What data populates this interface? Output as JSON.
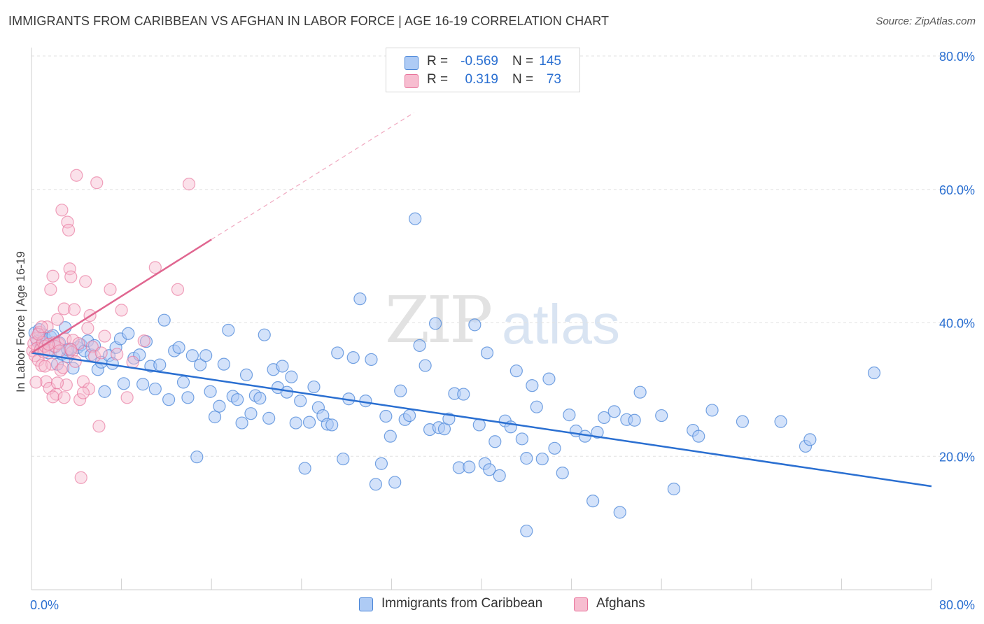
{
  "title": "IMMIGRANTS FROM CARIBBEAN VS AFGHAN IN LABOR FORCE | AGE 16-19 CORRELATION CHART",
  "source": "Source: ZipAtlas.com",
  "watermark": {
    "zip": "ZIP",
    "atlas": "atlas"
  },
  "legend": {
    "rows": [
      {
        "r_label": "R =",
        "r_value": "-0.569",
        "n_label": "N =",
        "n_value": "145",
        "color": "#aecbf5"
      },
      {
        "r_label": "R =",
        "r_value": "0.319",
        "n_label": "N =",
        "n_value": "73",
        "color": "#f7bdd0"
      }
    ]
  },
  "bottom_legend": [
    {
      "label": "Immigrants from Caribbean",
      "color": "#aecbf5"
    },
    {
      "label": "Afghans",
      "color": "#f7bdd0"
    }
  ],
  "chart_data": {
    "type": "scatter",
    "title": "IMMIGRANTS FROM CARIBBEAN VS AFGHAN IN LABOR FORCE | AGE 16-19 CORRELATION CHART",
    "xlabel": "",
    "ylabel": "In Labor Force | Age 16-19",
    "xlim": [
      0,
      80
    ],
    "ylim": [
      0,
      80
    ],
    "x_tick_labels": [
      "0.0%",
      "80.0%"
    ],
    "y_tick_labels": [
      "20.0%",
      "40.0%",
      "60.0%",
      "80.0%"
    ],
    "y_ticks": [
      20,
      40,
      60,
      80
    ],
    "grid": true,
    "colors": {
      "caribbean": "#4a86d8",
      "caribbean_fill": "#aecbf5",
      "afghan": "#e8739b",
      "afghan_fill": "#f7bdd0",
      "blue_text": "#2a6fd1"
    },
    "series": [
      {
        "name": "Immigrants from Caribbean",
        "trend": {
          "x": [
            0,
            80
          ],
          "y": [
            35.5,
            15.5
          ]
        },
        "points": [
          [
            0.3,
            38.5
          ],
          [
            0.5,
            37.2
          ],
          [
            0.7,
            39.0
          ],
          [
            0.9,
            36.8
          ],
          [
            1.1,
            38.2
          ],
          [
            1.3,
            37.5
          ],
          [
            1.5,
            35.5
          ],
          [
            1.7,
            37.9
          ],
          [
            1.9,
            38.1
          ],
          [
            2.1,
            36.4
          ],
          [
            2.3,
            33.8
          ],
          [
            2.5,
            37.0
          ],
          [
            2.7,
            35.3
          ],
          [
            3.0,
            39.3
          ],
          [
            3.2,
            34.9
          ],
          [
            3.4,
            36.1
          ],
          [
            3.7,
            33.2
          ],
          [
            4.1,
            36.3
          ],
          [
            4.4,
            36.7
          ],
          [
            4.7,
            35.8
          ],
          [
            5.0,
            37.3
          ],
          [
            5.3,
            35.2
          ],
          [
            5.6,
            36.6
          ],
          [
            5.9,
            33.0
          ],
          [
            6.2,
            34.1
          ],
          [
            6.5,
            29.7
          ],
          [
            6.9,
            35.1
          ],
          [
            7.2,
            33.9
          ],
          [
            7.5,
            36.3
          ],
          [
            7.9,
            37.6
          ],
          [
            8.2,
            30.9
          ],
          [
            8.6,
            38.4
          ],
          [
            9.1,
            34.7
          ],
          [
            9.6,
            35.2
          ],
          [
            9.9,
            30.8
          ],
          [
            10.2,
            37.2
          ],
          [
            10.6,
            33.5
          ],
          [
            11.0,
            30.1
          ],
          [
            11.4,
            33.7
          ],
          [
            11.8,
            40.4
          ],
          [
            12.2,
            28.5
          ],
          [
            12.7,
            35.8
          ],
          [
            13.1,
            36.3
          ],
          [
            13.5,
            31.1
          ],
          [
            13.9,
            28.8
          ],
          [
            14.3,
            35.1
          ],
          [
            14.7,
            19.9
          ],
          [
            15.0,
            33.7
          ],
          [
            15.5,
            35.1
          ],
          [
            15.9,
            29.7
          ],
          [
            16.3,
            25.9
          ],
          [
            16.7,
            27.5
          ],
          [
            17.1,
            33.8
          ],
          [
            17.5,
            38.9
          ],
          [
            17.9,
            29.0
          ],
          [
            18.3,
            28.5
          ],
          [
            18.7,
            25.0
          ],
          [
            19.1,
            32.2
          ],
          [
            19.5,
            26.4
          ],
          [
            19.9,
            29.1
          ],
          [
            20.3,
            28.7
          ],
          [
            20.7,
            38.2
          ],
          [
            21.1,
            25.7
          ],
          [
            21.5,
            33.0
          ],
          [
            21.9,
            30.3
          ],
          [
            22.3,
            33.5
          ],
          [
            22.7,
            29.6
          ],
          [
            23.1,
            31.9
          ],
          [
            23.5,
            25.0
          ],
          [
            23.9,
            28.3
          ],
          [
            24.3,
            18.2
          ],
          [
            24.7,
            25.1
          ],
          [
            25.1,
            30.4
          ],
          [
            25.5,
            27.3
          ],
          [
            25.9,
            26.1
          ],
          [
            26.3,
            24.8
          ],
          [
            26.7,
            24.7
          ],
          [
            27.2,
            35.5
          ],
          [
            27.7,
            19.6
          ],
          [
            28.2,
            28.6
          ],
          [
            28.6,
            34.8
          ],
          [
            29.2,
            43.6
          ],
          [
            29.7,
            28.3
          ],
          [
            30.2,
            34.5
          ],
          [
            30.6,
            15.8
          ],
          [
            31.1,
            18.9
          ],
          [
            31.5,
            26.0
          ],
          [
            31.9,
            23.0
          ],
          [
            32.3,
            16.1
          ],
          [
            32.8,
            29.8
          ],
          [
            33.2,
            25.5
          ],
          [
            33.6,
            26.1
          ],
          [
            34.1,
            55.6
          ],
          [
            34.5,
            36.6
          ],
          [
            35.0,
            33.6
          ],
          [
            35.4,
            24.0
          ],
          [
            35.9,
            39.9
          ],
          [
            36.2,
            24.3
          ],
          [
            36.7,
            24.1
          ],
          [
            37.1,
            25.6
          ],
          [
            37.6,
            29.4
          ],
          [
            38.0,
            18.3
          ],
          [
            38.4,
            29.3
          ],
          [
            38.9,
            18.4
          ],
          [
            39.4,
            39.7
          ],
          [
            39.8,
            24.7
          ],
          [
            40.3,
            18.9
          ],
          [
            40.7,
            18.0
          ],
          [
            41.2,
            22.2
          ],
          [
            41.6,
            17.1
          ],
          [
            42.1,
            25.3
          ],
          [
            42.6,
            24.4
          ],
          [
            43.1,
            32.8
          ],
          [
            43.6,
            22.6
          ],
          [
            44.0,
            19.7
          ],
          [
            44.5,
            30.6
          ],
          [
            44.9,
            27.4
          ],
          [
            45.4,
            19.6
          ],
          [
            46.0,
            31.6
          ],
          [
            46.5,
            21.2
          ],
          [
            47.2,
            17.5
          ],
          [
            47.8,
            26.2
          ],
          [
            48.4,
            23.8
          ],
          [
            49.2,
            23.0
          ],
          [
            49.9,
            13.3
          ],
          [
            50.3,
            23.6
          ],
          [
            50.9,
            25.8
          ],
          [
            51.8,
            26.7
          ],
          [
            52.3,
            11.6
          ],
          [
            52.9,
            25.5
          ],
          [
            53.6,
            25.4
          ],
          [
            54.1,
            29.6
          ],
          [
            56.0,
            26.1
          ],
          [
            57.1,
            15.1
          ],
          [
            58.8,
            23.9
          ],
          [
            59.3,
            23.0
          ],
          [
            60.5,
            26.9
          ],
          [
            63.2,
            25.2
          ],
          [
            66.6,
            25.2
          ],
          [
            68.8,
            21.5
          ],
          [
            69.2,
            22.5
          ],
          [
            74.9,
            32.5
          ],
          [
            40.5,
            35.5
          ],
          [
            44.0,
            8.8
          ],
          [
            3.2,
            36.0
          ]
        ]
      },
      {
        "name": "Afghans",
        "trend": {
          "x": [
            0,
            16
          ],
          "y": [
            35.5,
            52.5
          ],
          "dashed_to": {
            "x": [
              16,
              34
            ],
            "y": [
              52.5,
              71.5
            ]
          }
        },
        "points": [
          [
            0.1,
            35.8
          ],
          [
            0.2,
            36.9
          ],
          [
            0.3,
            35.1
          ],
          [
            0.4,
            37.7
          ],
          [
            0.5,
            36.2
          ],
          [
            0.6,
            34.4
          ],
          [
            0.7,
            38.6
          ],
          [
            0.8,
            36.0
          ],
          [
            0.9,
            33.6
          ],
          [
            1.0,
            37.1
          ],
          [
            1.1,
            35.6
          ],
          [
            1.2,
            36.5
          ],
          [
            1.3,
            31.2
          ],
          [
            1.4,
            39.4
          ],
          [
            1.5,
            35.9
          ],
          [
            1.6,
            30.2
          ],
          [
            1.7,
            45.0
          ],
          [
            1.8,
            33.8
          ],
          [
            1.9,
            47.0
          ],
          [
            2.0,
            37.0
          ],
          [
            2.1,
            36.5
          ],
          [
            2.2,
            29.3
          ],
          [
            2.3,
            40.5
          ],
          [
            2.4,
            36.9
          ],
          [
            2.5,
            35.8
          ],
          [
            2.6,
            32.9
          ],
          [
            2.7,
            56.9
          ],
          [
            2.8,
            33.3
          ],
          [
            2.9,
            42.1
          ],
          [
            3.0,
            37.6
          ],
          [
            3.1,
            30.7
          ],
          [
            3.2,
            55.1
          ],
          [
            3.3,
            53.9
          ],
          [
            3.4,
            48.1
          ],
          [
            3.5,
            46.9
          ],
          [
            3.6,
            35.6
          ],
          [
            3.7,
            37.4
          ],
          [
            3.8,
            42.0
          ],
          [
            3.9,
            34.2
          ],
          [
            4.0,
            62.1
          ],
          [
            4.2,
            36.9
          ],
          [
            4.3,
            28.5
          ],
          [
            4.4,
            16.8
          ],
          [
            4.6,
            31.2
          ],
          [
            4.8,
            46.2
          ],
          [
            5.0,
            39.2
          ],
          [
            5.1,
            30.1
          ],
          [
            5.2,
            41.1
          ],
          [
            5.4,
            36.4
          ],
          [
            5.6,
            35.0
          ],
          [
            5.8,
            61.0
          ],
          [
            6.0,
            24.5
          ],
          [
            6.2,
            35.5
          ],
          [
            6.5,
            38.0
          ],
          [
            7.0,
            45.0
          ],
          [
            7.6,
            35.3
          ],
          [
            8.0,
            41.9
          ],
          [
            8.5,
            28.8
          ],
          [
            9.0,
            34.1
          ],
          [
            10.0,
            37.3
          ],
          [
            11.0,
            48.3
          ],
          [
            13.0,
            45.0
          ],
          [
            14.0,
            60.8
          ],
          [
            0.4,
            31.1
          ],
          [
            0.6,
            38.3
          ],
          [
            0.9,
            39.4
          ],
          [
            1.2,
            33.5
          ],
          [
            1.5,
            36.8
          ],
          [
            1.9,
            28.9
          ],
          [
            2.3,
            31.0
          ],
          [
            2.9,
            28.8
          ],
          [
            3.5,
            36.0
          ],
          [
            4.6,
            29.5
          ]
        ]
      }
    ]
  }
}
